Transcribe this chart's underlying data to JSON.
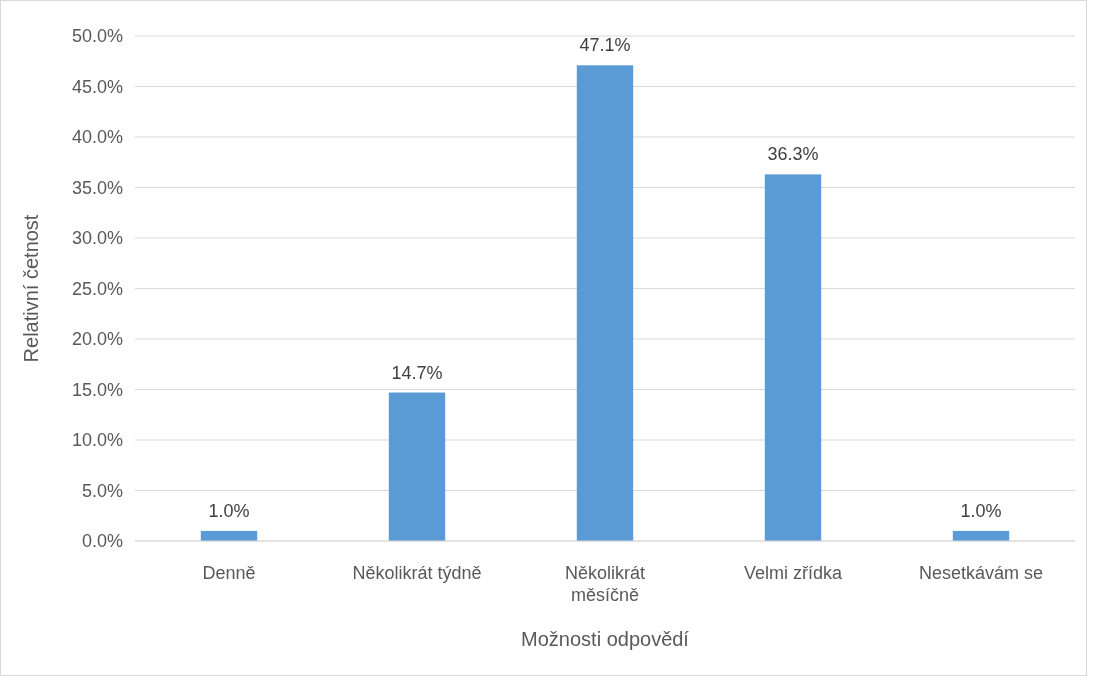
{
  "chart_data": {
    "type": "bar",
    "xlabel": "Možnosti odpovědí",
    "ylabel": "Relativní četnost",
    "categories": [
      "Denně",
      "Několikrát týdně",
      "Několikrát měsíčně",
      "Velmi zřídka",
      "Nesetkávám se"
    ],
    "values": [
      1.0,
      14.7,
      47.1,
      36.3,
      1.0
    ],
    "color": "#5b9bd5",
    "value_labels": [
      "1.0%",
      "14.7%",
      "47.1%",
      "36.3%",
      "1.0%"
    ],
    "ylim": [
      0,
      50
    ],
    "yticks": [
      {
        "value": 0,
        "label": "0.0%"
      },
      {
        "value": 5,
        "label": "5.0%"
      },
      {
        "value": 10,
        "label": "10.0%"
      },
      {
        "value": 15,
        "label": "15.0%"
      },
      {
        "value": 20,
        "label": "20.0%"
      },
      {
        "value": 25,
        "label": "25.0%"
      },
      {
        "value": 30,
        "label": "30.0%"
      },
      {
        "value": 35,
        "label": "35.0%"
      },
      {
        "value": 40,
        "label": "40.0%"
      },
      {
        "value": 45,
        "label": "45.0%"
      },
      {
        "value": 50,
        "label": "50.0%"
      }
    ],
    "grid": "y"
  }
}
